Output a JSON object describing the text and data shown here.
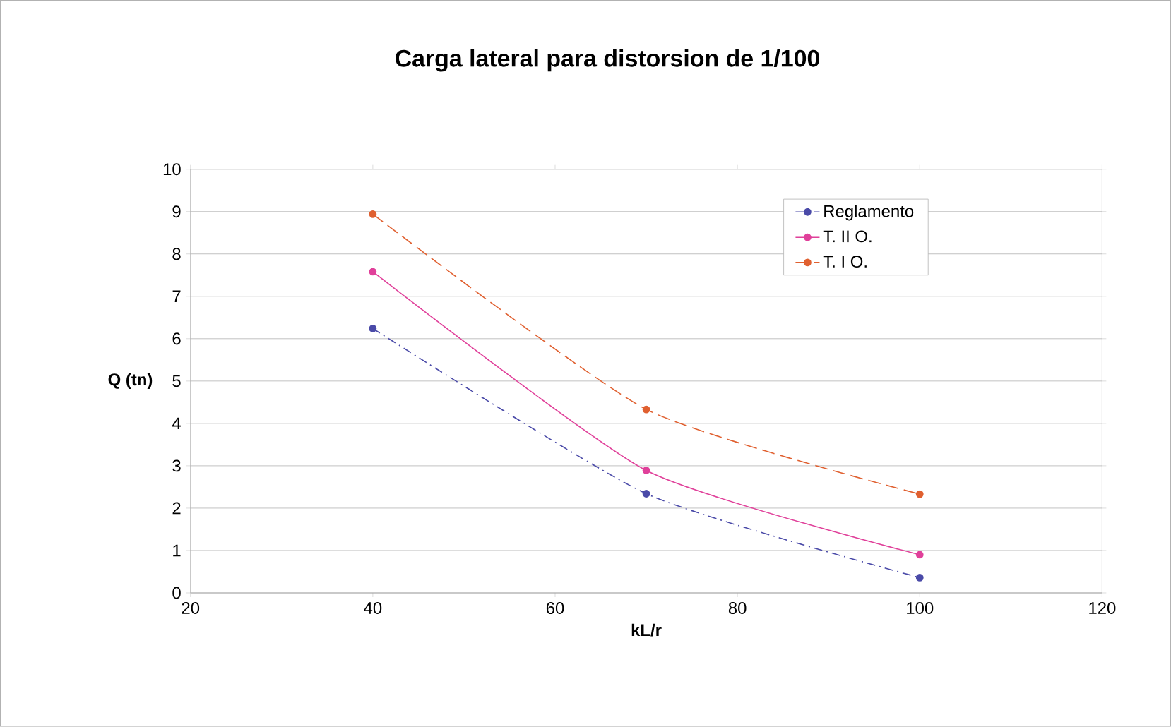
{
  "chart_data": {
    "type": "line",
    "title": "Carga lateral para distorsion de 1/100",
    "xlabel": "kL/r",
    "ylabel": "Q (tn)",
    "x": [
      40,
      70,
      100
    ],
    "series": [
      {
        "name": "Reglamento",
        "color": "#4a4aa8",
        "values": [
          6.24,
          2.34,
          0.36
        ],
        "line_style": "dotted"
      },
      {
        "name": "T. II O.",
        "color": "#e0409a",
        "values": [
          7.58,
          2.89,
          0.9
        ],
        "line_style": "solid"
      },
      {
        "name": "T. I O.",
        "color": "#e06030",
        "values": [
          8.94,
          4.33,
          2.33
        ],
        "line_style": "dashed"
      }
    ],
    "xlim": [
      20,
      120
    ],
    "xticks": [
      20,
      40,
      60,
      80,
      100,
      120
    ],
    "ylim": [
      0,
      10
    ],
    "yticks": [
      0,
      1,
      2,
      3,
      4,
      5,
      6,
      7,
      8,
      9,
      10
    ],
    "grid": "y",
    "legend": "top right",
    "marker": "circle"
  }
}
